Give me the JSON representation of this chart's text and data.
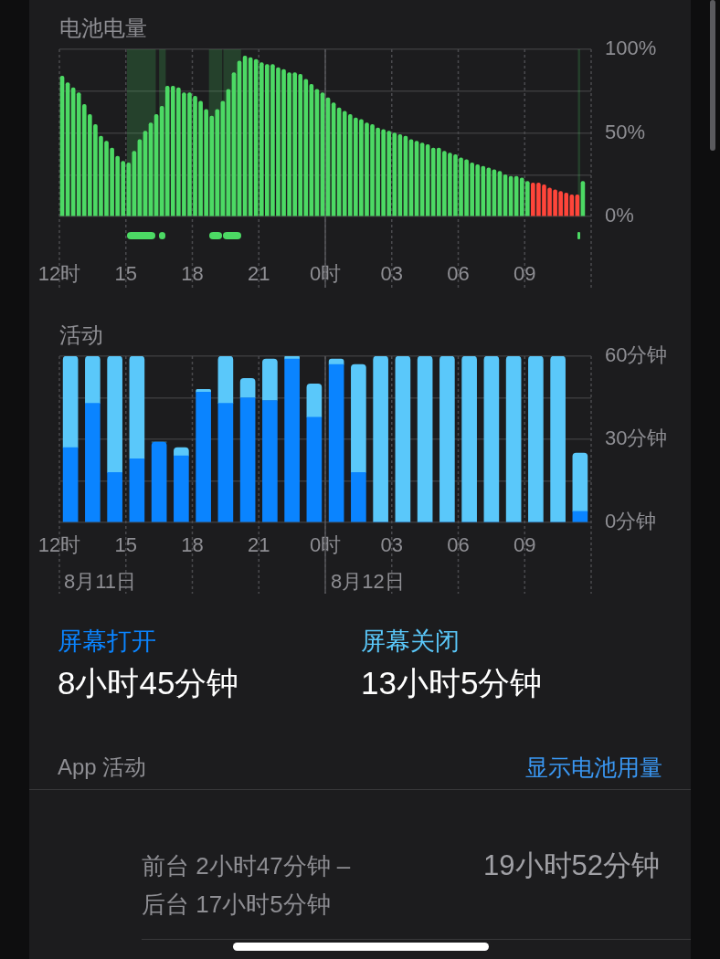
{
  "chart_data": [
    {
      "type": "bar",
      "title": "电池电量",
      "x": [
        "--08-11T12:07:30",
        "--08-11T12:22:30",
        "--08-11T12:37:30",
        "--08-11T12:52:30",
        "--08-11T13:07:30",
        "--08-11T13:22:30",
        "--08-11T13:37:30",
        "--08-11T13:52:30",
        "--08-11T14:07:30",
        "--08-11T14:22:30",
        "--08-11T14:37:30",
        "--08-11T14:52:30",
        "--08-11T15:07:30",
        "--08-11T15:22:30",
        "--08-11T15:37:30",
        "--08-11T15:52:30",
        "--08-11T16:07:30",
        "--08-11T16:22:30",
        "--08-11T16:37:30",
        "--08-11T16:52:30",
        "--08-11T17:07:30",
        "--08-11T17:22:30",
        "--08-11T17:37:30",
        "--08-11T17:52:30",
        "--08-11T18:07:30",
        "--08-11T18:22:30",
        "--08-11T18:37:30",
        "--08-11T18:52:30",
        "--08-11T19:07:30",
        "--08-11T19:22:30",
        "--08-11T19:37:30",
        "--08-11T19:52:30",
        "--08-11T20:07:30",
        "--08-11T20:22:30",
        "--08-11T20:37:30",
        "--08-11T20:52:30",
        "--08-11T21:07:30",
        "--08-11T21:22:30",
        "--08-11T21:37:30",
        "--08-11T21:52:30",
        "--08-11T22:07:30",
        "--08-11T22:22:30",
        "--08-11T22:37:30",
        "--08-11T22:52:30",
        "--08-11T23:07:30",
        "--08-11T23:22:30",
        "--08-11T23:37:30",
        "--08-11T23:52:30",
        "--08-12T00:07:30",
        "--08-12T00:22:30",
        "--08-12T00:37:30",
        "--08-12T00:52:30",
        "--08-12T01:07:30",
        "--08-12T01:22:30",
        "--08-12T01:37:30",
        "--08-12T01:52:30",
        "--08-12T02:07:30",
        "--08-12T02:22:30",
        "--08-12T02:37:30",
        "--08-12T02:52:30",
        "--08-12T03:07:30",
        "--08-12T03:22:30",
        "--08-12T03:37:30",
        "--08-12T03:52:30",
        "--08-12T04:07:30",
        "--08-12T04:22:30",
        "--08-12T04:37:30",
        "--08-12T04:52:30",
        "--08-12T05:07:30",
        "--08-12T05:22:30",
        "--08-12T05:37:30",
        "--08-12T05:52:30",
        "--08-12T06:07:30",
        "--08-12T06:22:30",
        "--08-12T06:37:30",
        "--08-12T06:52:30",
        "--08-12T07:07:30",
        "--08-12T07:22:30",
        "--08-12T07:37:30",
        "--08-12T07:52:30",
        "--08-12T08:07:30",
        "--08-12T08:22:30",
        "--08-12T08:37:30",
        "--08-12T08:52:30",
        "--08-12T09:07:30",
        "--08-12T09:22:30",
        "--08-12T09:37:30",
        "--08-12T09:52:30",
        "--08-12T10:07:30",
        "--08-12T10:22:30",
        "--08-12T10:37:30",
        "--08-12T10:52:30",
        "--08-12T11:07:30",
        "--08-12T11:22:30",
        "--08-12T11:37:30"
      ],
      "values": [
        84,
        80,
        77,
        74,
        67,
        61,
        55,
        48,
        45,
        41,
        36,
        33,
        32,
        39,
        46,
        51,
        56,
        61,
        66,
        78,
        78,
        77,
        74,
        74,
        72,
        69,
        64,
        60,
        64,
        69,
        76,
        86,
        93,
        96,
        95,
        94,
        92,
        91,
        91,
        89,
        88,
        86,
        86,
        85,
        82,
        79,
        76,
        74,
        71,
        68,
        65,
        63,
        61,
        59,
        58,
        56,
        55,
        53,
        52,
        51,
        50,
        49,
        48,
        46,
        45,
        44,
        43,
        41,
        41,
        39,
        38,
        37,
        35,
        34,
        32,
        31,
        30,
        29,
        28,
        27,
        25,
        24,
        24,
        23,
        21,
        20,
        20,
        19,
        17,
        16,
        15,
        14,
        13,
        13,
        21
      ],
      "colors": [
        "#4cd964",
        "#4cd964",
        "#4cd964",
        "#4cd964",
        "#4cd964",
        "#4cd964",
        "#4cd964",
        "#4cd964",
        "#4cd964",
        "#4cd964",
        "#4cd964",
        "#4cd964",
        "#4cd964",
        "#4cd964",
        "#4cd964",
        "#4cd964",
        "#4cd964",
        "#4cd964",
        "#4cd964",
        "#4cd964",
        "#4cd964",
        "#4cd964",
        "#4cd964",
        "#4cd964",
        "#4cd964",
        "#4cd964",
        "#4cd964",
        "#4cd964",
        "#4cd964",
        "#4cd964",
        "#4cd964",
        "#4cd964",
        "#4cd964",
        "#4cd964",
        "#4cd964",
        "#4cd964",
        "#4cd964",
        "#4cd964",
        "#4cd964",
        "#4cd964",
        "#4cd964",
        "#4cd964",
        "#4cd964",
        "#4cd964",
        "#4cd964",
        "#4cd964",
        "#4cd964",
        "#4cd964",
        "#4cd964",
        "#4cd964",
        "#4cd964",
        "#4cd964",
        "#4cd964",
        "#4cd964",
        "#4cd964",
        "#4cd964",
        "#4cd964",
        "#4cd964",
        "#4cd964",
        "#4cd964",
        "#4cd964",
        "#4cd964",
        "#4cd964",
        "#4cd964",
        "#4cd964",
        "#4cd964",
        "#4cd964",
        "#4cd964",
        "#4cd964",
        "#4cd964",
        "#4cd964",
        "#4cd964",
        "#4cd964",
        "#4cd964",
        "#4cd964",
        "#4cd964",
        "#4cd964",
        "#4cd964",
        "#4cd964",
        "#4cd964",
        "#4cd964",
        "#4cd964",
        "#4cd964",
        "#4cd964",
        "#4cd964",
        "#ff453a",
        "#ff453a",
        "#ff453a",
        "#ff453a",
        "#ff453a",
        "#ff453a",
        "#ff453a",
        "#ff453a",
        "#ff453a",
        "#4cd964"
      ],
      "xlim": [
        "--08-11T12:00",
        "--08-12T12:00"
      ],
      "xticks": [
        {
          "value": "--08-11T12:00",
          "label": "12时"
        },
        {
          "value": "--08-11T15:00",
          "label": "15"
        },
        {
          "value": "--08-11T18:00",
          "label": "18"
        },
        {
          "value": "--08-11T21:00",
          "label": "21"
        },
        {
          "value": "--08-12T00:00",
          "label": "0时"
        },
        {
          "value": "--08-12T03:00",
          "label": "03"
        },
        {
          "value": "--08-12T06:00",
          "label": "06"
        },
        {
          "value": "--08-12T09:00",
          "label": "09"
        },
        {
          "value": "--08-12T12:00",
          "label": null
        }
      ],
      "ylim": [
        0,
        100
      ],
      "yticks": [
        {
          "value": 0,
          "label": "0%"
        },
        {
          "value": 25,
          "label": null
        },
        {
          "value": 50,
          "label": "50%"
        },
        {
          "value": 75,
          "label": null
        },
        {
          "value": 100,
          "label": "100%"
        }
      ],
      "grid": true,
      "ref_lines": [
        {
          "axis": "x",
          "value": "--08-12T00:00",
          "color": "#545458"
        }
      ],
      "bands": [
        {
          "axis": "x",
          "from": "--08-11T15:03",
          "to": "--08-11T16:21",
          "color": "#4cd964"
        },
        {
          "axis": "x",
          "from": "--08-11T16:30",
          "to": "--08-11T16:48",
          "color": "#4cd964"
        },
        {
          "axis": "x",
          "from": "--08-11T18:45",
          "to": "--08-11T19:21",
          "color": "#4cd964"
        },
        {
          "axis": "x",
          "from": "--08-11T19:24",
          "to": "--08-11T20:12",
          "color": "#4cd964"
        },
        {
          "axis": "x",
          "from": "--08-12T11:24",
          "to": "--08-12T11:30",
          "color": "#4cd964"
        }
      ]
    },
    {
      "type": "bar",
      "title": "活动",
      "x": [
        "--08-11T12:30",
        "--08-11T13:30",
        "--08-11T14:30",
        "--08-11T15:30",
        "--08-11T16:30",
        "--08-11T17:30",
        "--08-11T18:30",
        "--08-11T19:30",
        "--08-11T20:30",
        "--08-11T21:30",
        "--08-11T22:30",
        "--08-11T23:30",
        "--08-12T00:30",
        "--08-12T01:30",
        "--08-12T02:30",
        "--08-12T03:30",
        "--08-12T04:30",
        "--08-12T05:30",
        "--08-12T06:30",
        "--08-12T07:30",
        "--08-12T08:30",
        "--08-12T09:30",
        "--08-12T10:30",
        "--08-12T11:30"
      ],
      "series": [
        {
          "name": "屏幕打开",
          "color": "#0a84ff",
          "values": [
            27,
            43,
            18,
            23,
            29,
            24,
            47,
            43,
            45,
            44,
            59,
            38,
            57,
            18,
            0,
            0,
            0,
            0,
            0,
            0,
            0,
            0,
            0,
            4
          ]
        },
        {
          "name": "屏幕关闭",
          "color": "#5ac8fa",
          "values": [
            33,
            17,
            42,
            37,
            0,
            3,
            1,
            17,
            7,
            15,
            1,
            12,
            2,
            39,
            60,
            60,
            60,
            60,
            60,
            60,
            60,
            60,
            60,
            21
          ]
        }
      ],
      "stacked": true,
      "xlim": [
        "--08-11T12:00",
        "--08-12T12:00"
      ],
      "xticks": [
        {
          "value": "--08-11T12:00",
          "label": "12时"
        },
        {
          "value": "--08-11T15:00",
          "label": "15"
        },
        {
          "value": "--08-11T18:00",
          "label": "18"
        },
        {
          "value": "--08-11T21:00",
          "label": "21"
        },
        {
          "value": "--08-12T00:00",
          "label": "0时"
        },
        {
          "value": "--08-12T03:00",
          "label": "03"
        },
        {
          "value": "--08-12T06:00",
          "label": "06"
        },
        {
          "value": "--08-12T09:00",
          "label": "09"
        },
        {
          "value": "--08-12T12:00",
          "label": null
        }
      ],
      "ylim": [
        0,
        60
      ],
      "yticks": [
        {
          "value": 0,
          "label": "0分钟"
        },
        {
          "value": 15,
          "label": null
        },
        {
          "value": 30,
          "label": "30分钟"
        },
        {
          "value": 45,
          "label": null
        },
        {
          "value": 60,
          "label": "60分钟"
        }
      ],
      "grid": true,
      "ref_lines": [
        {
          "axis": "x",
          "value": "--08-12T00:00",
          "color": "#545458"
        }
      ],
      "legend": "bottom",
      "annotations": [
        "8月11日",
        "8月12日",
        "8小时45分钟",
        "13小时5分钟"
      ]
    },
    {
      "type": "other",
      "title": "App 活动",
      "annotations": [
        "显示电池用量",
        "前台 2小时47分钟 –",
        "后台 17小时5分钟",
        "19小时52分钟"
      ]
    }
  ]
}
